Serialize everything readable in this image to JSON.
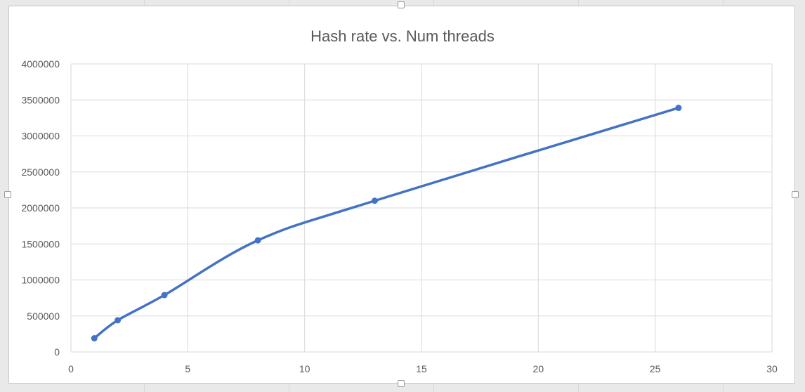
{
  "chart_data": {
    "type": "scatter",
    "title": "Hash rate vs. Num threads",
    "xlabel": "",
    "ylabel": "",
    "xlim": [
      0,
      30
    ],
    "ylim": [
      0,
      4000000
    ],
    "x_ticks": [
      "0",
      "5",
      "10",
      "15",
      "20",
      "25",
      "30"
    ],
    "y_ticks": [
      "0",
      "500000",
      "1000000",
      "1500000",
      "2000000",
      "2500000",
      "3000000",
      "3500000",
      "4000000"
    ],
    "grid": true,
    "legend": "none",
    "series": [
      {
        "x": [
          1,
          2,
          4,
          8,
          13,
          26
        ],
        "y": [
          190000,
          440000,
          790000,
          1550000,
          2100000,
          3390000
        ],
        "color": "#4472c4",
        "markers": true,
        "trendline": "smooth"
      }
    ]
  }
}
